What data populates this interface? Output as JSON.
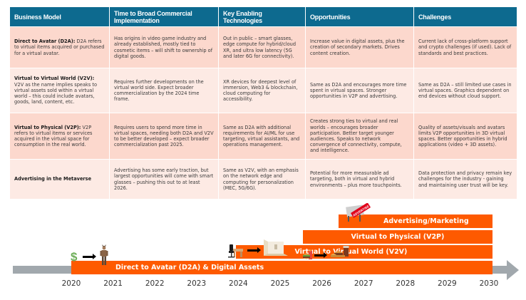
{
  "table": {
    "headers": [
      "Business Model",
      "Time to Broad Commercial Implementation",
      "Key Enabling Technologies",
      "Opportunities",
      "Challenges"
    ],
    "rows": [
      {
        "model_title": "Direct to Avatar (D2A):",
        "model_desc": " D2A refers to virtual items acquired or purchased for a virtual avatar.",
        "time": "Has origins in video game industry and already established, mostly tied to cosmetic items – will shift to ownership of digital goods.",
        "tech": "Out in public – smart glasses, edge compute for hybrid/cloud XR, and ultra low latency (5G and later 6G for connectivity).",
        "opportunities": "Increase value in digital assets, plus the creation of secondary markets. Drives content creation.",
        "challenges": "Current lack of cross-platform support and crypto challenges (if used). Lack of standards and best practices."
      },
      {
        "model_title": "Virtual to Virtual World (V2V):",
        "model_desc": " V2V as the name implies speaks to virtual assets sold within a virtual world – this could include avatars, goods, land, content, etc.",
        "time": "Requires further developments on the virtual world side. Expect broader commercialization by the 2024 time frame.",
        "tech": "XR devices for deepest level of immersion, Web3 & blockchain, cloud computing for accessibility.",
        "opportunities": "Same as D2A and encourages more time spent in virtual spaces. Stronger opportunities in V2P and advertising.",
        "challenges": "Same as D2A – still limited use cases in virtual spaces. Graphics dependent on end devices without cloud support."
      },
      {
        "model_title": "Virtual to Physical (V2P):",
        "model_desc": " V2P refers to virtual items or services acquired in the virtual space for consumption in the real world.",
        "time": "Requires users to spend more time in virtual spaces, needing both D2A and V2V to be better developed – expect broader commercialization past 2025.",
        "tech": "Same as D2A with additional requirements for AI/ML for use targeting, virtual assistants, and operations management.",
        "opportunities": "Creates strong ties to virtual and real worlds – encourages broader participation. Better target younger audiences. Speaks to network convergence of connectivity, compute, and intelligence.",
        "challenges": "Quality of assets/visuals and avatars limits V2P opportunities in 3D virtual spaces. Better opportunities in hybrid applications (video + 3D assets)."
      },
      {
        "model_title": "Advertising in the Metaverse",
        "model_desc": "",
        "time": "Advertising has some early traction, but largest opportunities will come with smart glasses – pushing this out to at least 2026.",
        "tech": "Same as V2V, with an emphasis on the network edge and computing for personalization (MEC, 5G/6G).",
        "opportunities": "Potential for more measurable ad targeting, both in virtual and hybrid environments – plus more touchpoints.",
        "challenges": "Data protection and privacy remain key challenges for the industry - gaining and maintaining user trust will be key."
      }
    ]
  },
  "timeline": {
    "years": [
      "2020",
      "2021",
      "2022",
      "2023",
      "2024",
      "2025",
      "2026",
      "2027",
      "2028",
      "2029",
      "2030"
    ],
    "bars": [
      {
        "label": "Direct to Avatar (D2A) & Digital Assets",
        "start": 2020.0,
        "end": 2030.08
      },
      {
        "label": "Virtual to Virtual World (V2V)",
        "start": 2023.95,
        "end": 2030.08
      },
      {
        "label": "Virtual to Physical (V2P)",
        "start": 2025.55,
        "end": 2030.08
      },
      {
        "label": "Advertising/Marketing",
        "start": 2026.4,
        "end": 2030.08
      }
    ],
    "icons": {
      "money": "$",
      "advertise_sign": "ADVERTISE"
    },
    "colors": {
      "bar": "#fe5a00",
      "axis": "#a1a8ad",
      "header": "#0d6a8f"
    }
  }
}
